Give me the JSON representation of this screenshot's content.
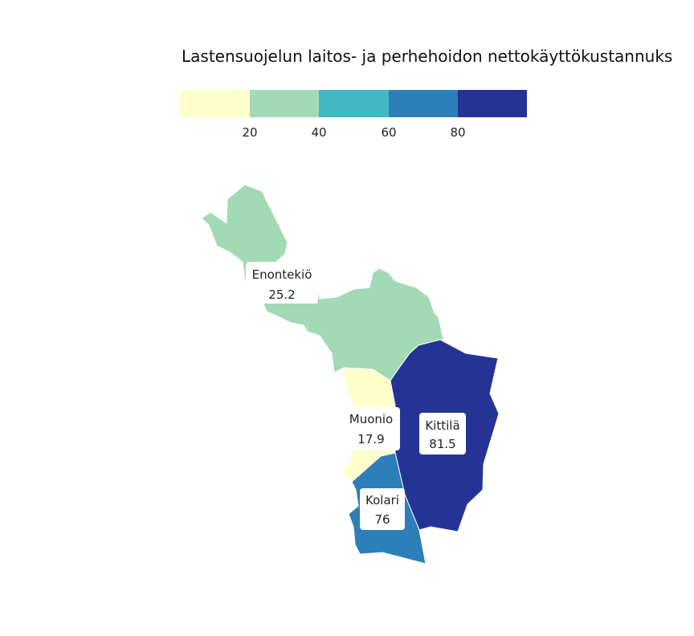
{
  "title": "Lastensuojelun laitos- ja perhehoidon nettokäyttökustannuks",
  "legend": {
    "ticks": [
      "20",
      "40",
      "60",
      "80"
    ],
    "bins": [
      {
        "color": "#ffffcc"
      },
      {
        "color": "#a1dab4"
      },
      {
        "color": "#41b6c4"
      },
      {
        "color": "#2c7fb8"
      },
      {
        "color": "#253494"
      }
    ]
  },
  "regions": [
    {
      "id": "enontekio",
      "name": "Enontekiö",
      "value": "25.2",
      "color": "#a1dab4"
    },
    {
      "id": "muonio",
      "name": "Muonio",
      "value": "17.9",
      "color": "#ffffcc"
    },
    {
      "id": "kittila",
      "name": "Kittilä",
      "value": "81.5",
      "color": "#253494"
    },
    {
      "id": "kolari",
      "name": "Kolari",
      "value": "76",
      "color": "#2c7fb8"
    }
  ]
}
